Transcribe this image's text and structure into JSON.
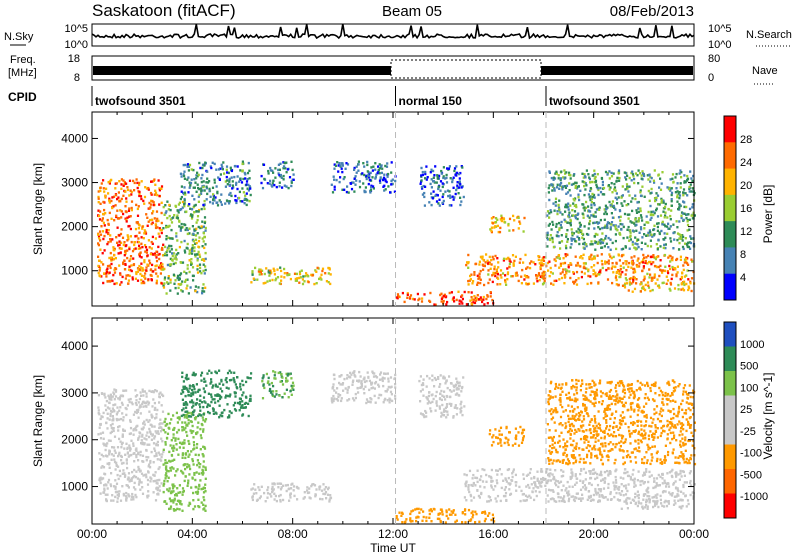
{
  "header": {
    "title": "Saskatoon (fitACF)",
    "beam": "Beam 05",
    "date": "08/Feb/2013"
  },
  "noise_panel": {
    "left_label": "N.Sky",
    "right_label": "N.Search",
    "left_ticks": [
      "10^5",
      "10^0"
    ],
    "right_ticks": [
      "10^5",
      "10^0"
    ]
  },
  "freq_panel": {
    "left_label_line1": "Freq.",
    "left_label_line2": "[MHz]",
    "left_ticks": [
      "18",
      "8"
    ],
    "right_label": "Nave",
    "right_ticks": [
      "80",
      "0"
    ]
  },
  "cpid": {
    "label": "CPID",
    "segments": [
      {
        "start": 0,
        "end": 12.1,
        "text": "twofsound 3501"
      },
      {
        "start": 12.1,
        "end": 18.1,
        "text": "normal 150"
      },
      {
        "start": 18.1,
        "end": 24,
        "text": "twofsound 3501"
      }
    ]
  },
  "chart_data": [
    {
      "type": "heatmap",
      "name": "power",
      "ylabel": "Slant Range [km]",
      "y_ticks": [
        1000,
        2000,
        3000,
        4000
      ],
      "ylim": [
        200,
        4600
      ],
      "xlim": [
        0,
        24
      ],
      "colorbar_label": "Power [dB]",
      "colorbar_ticks": [
        "28",
        "24",
        "20",
        "16",
        "12",
        "8",
        "4"
      ],
      "colorbar_colors": [
        "#ff0000",
        "#ff6a00",
        "#ffb300",
        "#9acd32",
        "#2e8b57",
        "#4682b4",
        "#0000ff"
      ],
      "mode_change_lines": [
        12.1,
        18.1
      ],
      "regions": [
        {
          "t": [
            0.2,
            2.8
          ],
          "r": [
            700,
            3100
          ],
          "v": 24
        },
        {
          "t": [
            2.8,
            4.5
          ],
          "r": [
            500,
            2600
          ],
          "v": 14
        },
        {
          "t": [
            3.5,
            6.3
          ],
          "r": [
            2500,
            3500
          ],
          "v": 10
        },
        {
          "t": [
            6.3,
            9.5
          ],
          "r": [
            700,
            1100
          ],
          "v": 18
        },
        {
          "t": [
            6.7,
            8.0
          ],
          "r": [
            2900,
            3500
          ],
          "v": 9
        },
        {
          "t": [
            9.5,
            12.1
          ],
          "r": [
            2800,
            3500
          ],
          "v": 8
        },
        {
          "t": [
            12.1,
            16.0
          ],
          "r": [
            250,
            550
          ],
          "v": 26
        },
        {
          "t": [
            13.0,
            14.8
          ],
          "r": [
            2500,
            3400
          ],
          "v": 7
        },
        {
          "t": [
            14.8,
            24
          ],
          "r": [
            700,
            1400
          ],
          "v": 22
        },
        {
          "t": [
            15.8,
            17.2
          ],
          "r": [
            1900,
            2300
          ],
          "v": 20
        },
        {
          "t": [
            18.1,
            24
          ],
          "r": [
            1500,
            3300
          ],
          "v": 12
        },
        {
          "t": [
            21.0,
            24
          ],
          "r": [
            550,
            750
          ],
          "v": 20
        }
      ]
    },
    {
      "type": "heatmap",
      "name": "velocity",
      "ylabel": "Slant Range [km]",
      "y_ticks": [
        1000,
        2000,
        3000,
        4000
      ],
      "ylim": [
        200,
        4600
      ],
      "xlim": [
        0,
        24
      ],
      "colorbar_label": "Velocity [m s^-1]",
      "colorbar_ticks": [
        "1000",
        "500",
        "100",
        "25",
        "-25",
        "-100",
        "-500",
        "-1000"
      ],
      "colorbar_colors": [
        "#1f4fbf",
        "#2e8b57",
        "#7cc24a",
        "#c8c8c8",
        "#c8c8c8",
        "#ff9900",
        "#ff6600",
        "#ff0000"
      ],
      "mode_change_lines": [
        12.1,
        18.1
      ],
      "regions": [
        {
          "t": [
            0.2,
            2.8
          ],
          "r": [
            700,
            3100
          ],
          "v": 0
        },
        {
          "t": [
            2.8,
            4.5
          ],
          "r": [
            500,
            2600
          ],
          "v": 150
        },
        {
          "t": [
            3.5,
            6.3
          ],
          "r": [
            2500,
            3500
          ],
          "v": 400
        },
        {
          "t": [
            6.3,
            9.5
          ],
          "r": [
            700,
            1100
          ],
          "v": 0
        },
        {
          "t": [
            6.7,
            8.0
          ],
          "r": [
            2900,
            3500
          ],
          "v": 300
        },
        {
          "t": [
            9.5,
            12.1
          ],
          "r": [
            2800,
            3500
          ],
          "v": 0
        },
        {
          "t": [
            12.1,
            16.0
          ],
          "r": [
            250,
            550
          ],
          "v": -150
        },
        {
          "t": [
            13.0,
            14.8
          ],
          "r": [
            2500,
            3400
          ],
          "v": 0
        },
        {
          "t": [
            14.8,
            24
          ],
          "r": [
            700,
            1400
          ],
          "v": 0
        },
        {
          "t": [
            15.8,
            17.2
          ],
          "r": [
            1900,
            2300
          ],
          "v": -200
        },
        {
          "t": [
            18.1,
            24
          ],
          "r": [
            1500,
            3300
          ],
          "v": -150
        },
        {
          "t": [
            21.0,
            24
          ],
          "r": [
            550,
            750
          ],
          "v": 0
        }
      ]
    }
  ],
  "x_axis": {
    "tick_labels": [
      "00:00",
      "04:00",
      "08:00",
      "12:00",
      "16:00",
      "20:00",
      "00:00"
    ],
    "label": "Time UT"
  }
}
